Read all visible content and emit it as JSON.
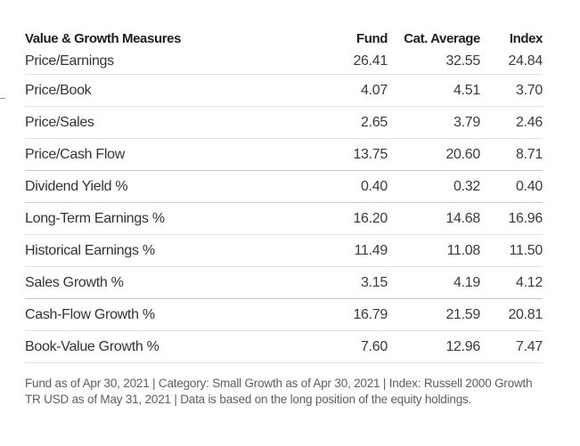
{
  "table": {
    "headers": {
      "measure": "Value & Growth Measures",
      "fund": "Fund",
      "category": "Cat. Average",
      "index": "Index"
    },
    "rows": [
      {
        "measure": "Price/Earnings",
        "fund": "26.41",
        "category": "32.55",
        "index": "24.84"
      },
      {
        "measure": "Price/Book",
        "fund": "4.07",
        "category": "4.51",
        "index": "3.70"
      },
      {
        "measure": "Price/Sales",
        "fund": "2.65",
        "category": "3.79",
        "index": "2.46"
      },
      {
        "measure": "Price/Cash Flow",
        "fund": "13.75",
        "category": "20.60",
        "index": "8.71"
      },
      {
        "measure": "Dividend Yield %",
        "fund": "0.40",
        "category": "0.32",
        "index": "0.40"
      },
      {
        "measure": "Long-Term Earnings %",
        "fund": "16.20",
        "category": "14.68",
        "index": "16.96"
      },
      {
        "measure": "Historical Earnings %",
        "fund": "11.49",
        "category": "11.08",
        "index": "11.50"
      },
      {
        "measure": "Sales Growth %",
        "fund": "3.15",
        "category": "4.19",
        "index": "4.12"
      },
      {
        "measure": "Cash-Flow Growth %",
        "fund": "16.79",
        "category": "21.59",
        "index": "20.81"
      },
      {
        "measure": "Book-Value Growth %",
        "fund": "7.60",
        "category": "12.96",
        "index": "7.47"
      }
    ]
  },
  "footnote": "Fund as of Apr 30, 2021 | Category: Small Growth as of Apr 30, 2021 | Index: Russell 2000 Growth TR USD as of May 31, 2021 | Data is based on the long position of the equity holdings."
}
